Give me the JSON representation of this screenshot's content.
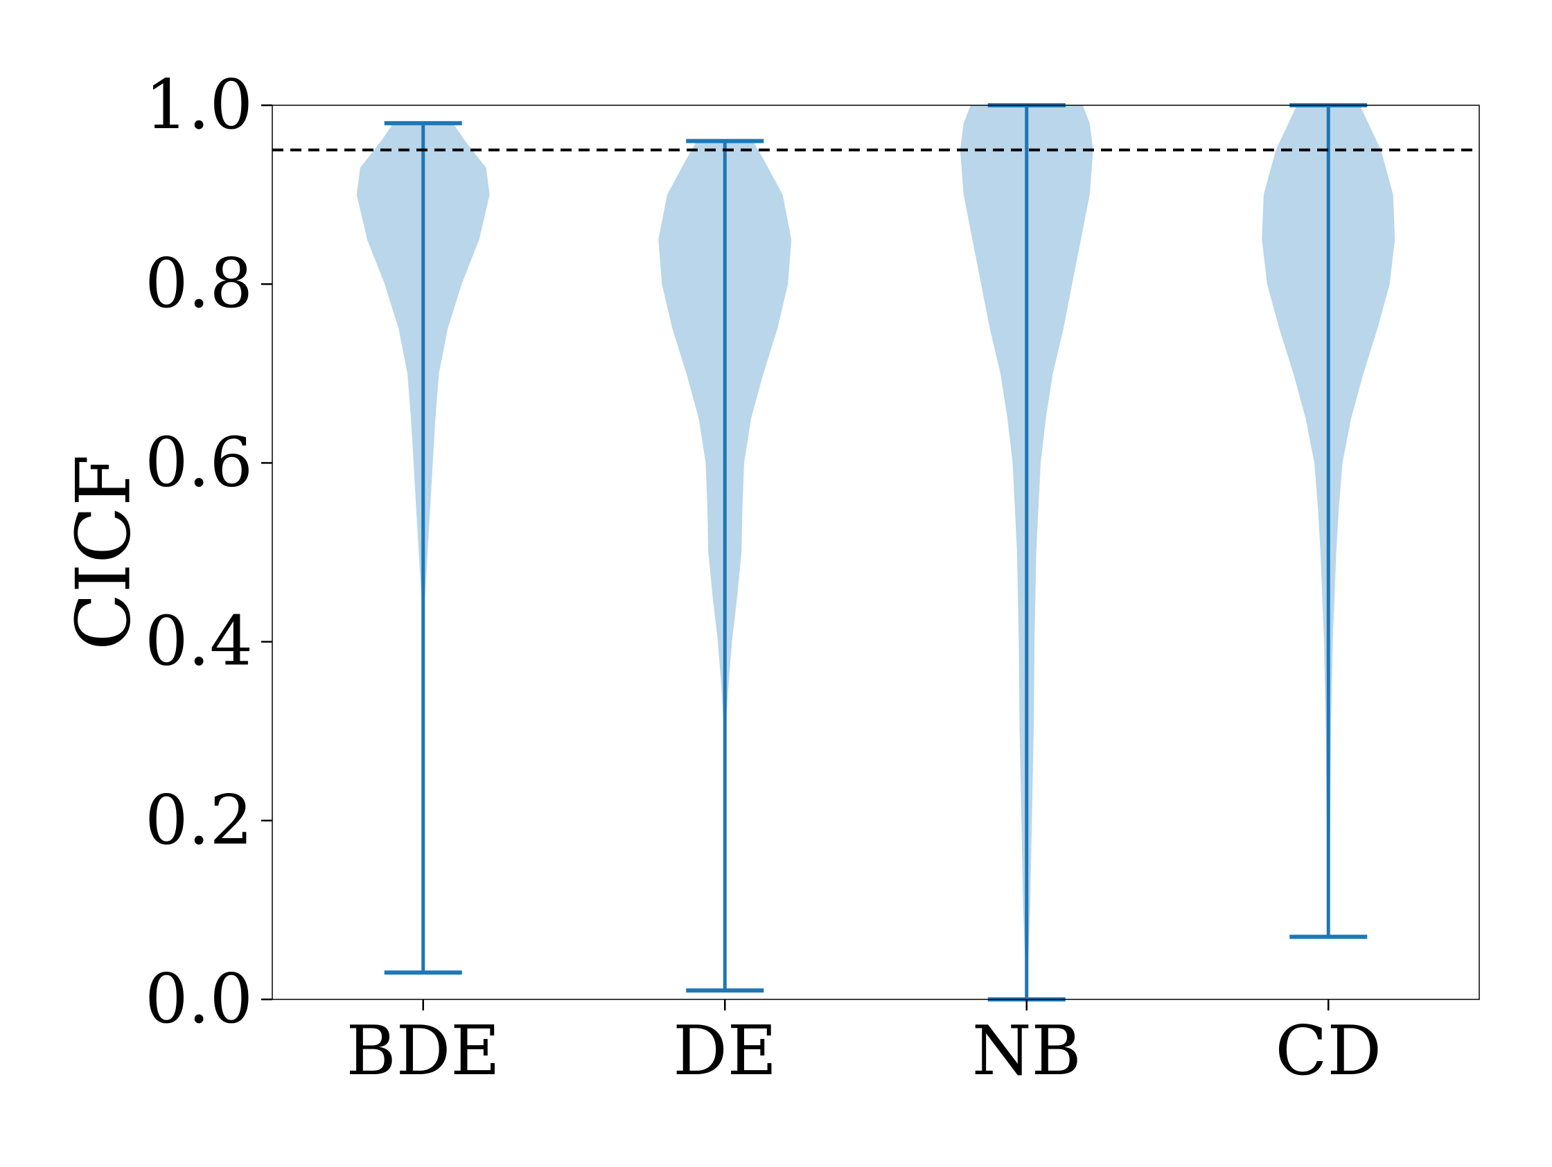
{
  "chart_data": {
    "type": "violin",
    "ylabel": "CICF",
    "xlabel": "",
    "ylim": [
      0.0,
      1.0
    ],
    "yticks": [
      "0.0",
      "0.2",
      "0.4",
      "0.6",
      "0.8",
      "1.0"
    ],
    "grid": false,
    "reference_line": {
      "y": 0.95,
      "style": "dashed",
      "color": "#000000"
    },
    "colors": {
      "body": "#b9d6ea",
      "lines": "#1f77b4",
      "axis": "#000000"
    },
    "categories": [
      "BDE",
      "DE",
      "NB",
      "CD"
    ],
    "violins": [
      {
        "label": "BDE",
        "min": 0.03,
        "max": 0.98,
        "profile": [
          [
            0.03,
            0.0
          ],
          [
            0.1,
            0.0
          ],
          [
            0.2,
            0.0
          ],
          [
            0.3,
            0.0
          ],
          [
            0.4,
            0.005
          ],
          [
            0.45,
            0.01
          ],
          [
            0.5,
            0.025
          ],
          [
            0.55,
            0.04
          ],
          [
            0.6,
            0.055
          ],
          [
            0.65,
            0.07
          ],
          [
            0.7,
            0.09
          ],
          [
            0.75,
            0.14
          ],
          [
            0.8,
            0.22
          ],
          [
            0.85,
            0.32
          ],
          [
            0.9,
            0.38
          ],
          [
            0.93,
            0.36
          ],
          [
            0.96,
            0.24
          ],
          [
            0.98,
            0.17
          ]
        ]
      },
      {
        "label": "DE",
        "min": 0.01,
        "max": 0.96,
        "profile": [
          [
            0.01,
            0.0
          ],
          [
            0.1,
            0.0
          ],
          [
            0.2,
            0.0
          ],
          [
            0.3,
            0.005
          ],
          [
            0.35,
            0.02
          ],
          [
            0.4,
            0.04
          ],
          [
            0.45,
            0.07
          ],
          [
            0.5,
            0.095
          ],
          [
            0.55,
            0.1
          ],
          [
            0.6,
            0.11
          ],
          [
            0.65,
            0.15
          ],
          [
            0.7,
            0.22
          ],
          [
            0.75,
            0.3
          ],
          [
            0.8,
            0.36
          ],
          [
            0.85,
            0.38
          ],
          [
            0.9,
            0.33
          ],
          [
            0.94,
            0.22
          ],
          [
            0.96,
            0.16
          ]
        ]
      },
      {
        "label": "NB",
        "min": 0.0,
        "max": 1.0,
        "profile": [
          [
            0.0,
            0.0
          ],
          [
            0.05,
            0.01
          ],
          [
            0.1,
            0.02
          ],
          [
            0.2,
            0.03
          ],
          [
            0.3,
            0.04
          ],
          [
            0.4,
            0.045
          ],
          [
            0.5,
            0.055
          ],
          [
            0.6,
            0.08
          ],
          [
            0.65,
            0.11
          ],
          [
            0.7,
            0.15
          ],
          [
            0.75,
            0.21
          ],
          [
            0.8,
            0.26
          ],
          [
            0.85,
            0.31
          ],
          [
            0.9,
            0.36
          ],
          [
            0.95,
            0.38
          ],
          [
            0.98,
            0.36
          ],
          [
            1.0,
            0.32
          ]
        ]
      },
      {
        "label": "CD",
        "min": 0.07,
        "max": 1.0,
        "profile": [
          [
            0.07,
            0.0
          ],
          [
            0.15,
            0.005
          ],
          [
            0.2,
            0.01
          ],
          [
            0.3,
            0.015
          ],
          [
            0.4,
            0.025
          ],
          [
            0.5,
            0.045
          ],
          [
            0.55,
            0.06
          ],
          [
            0.6,
            0.08
          ],
          [
            0.65,
            0.13
          ],
          [
            0.7,
            0.2
          ],
          [
            0.75,
            0.28
          ],
          [
            0.8,
            0.35
          ],
          [
            0.85,
            0.38
          ],
          [
            0.9,
            0.37
          ],
          [
            0.95,
            0.3
          ],
          [
            1.0,
            0.18
          ]
        ]
      }
    ]
  }
}
